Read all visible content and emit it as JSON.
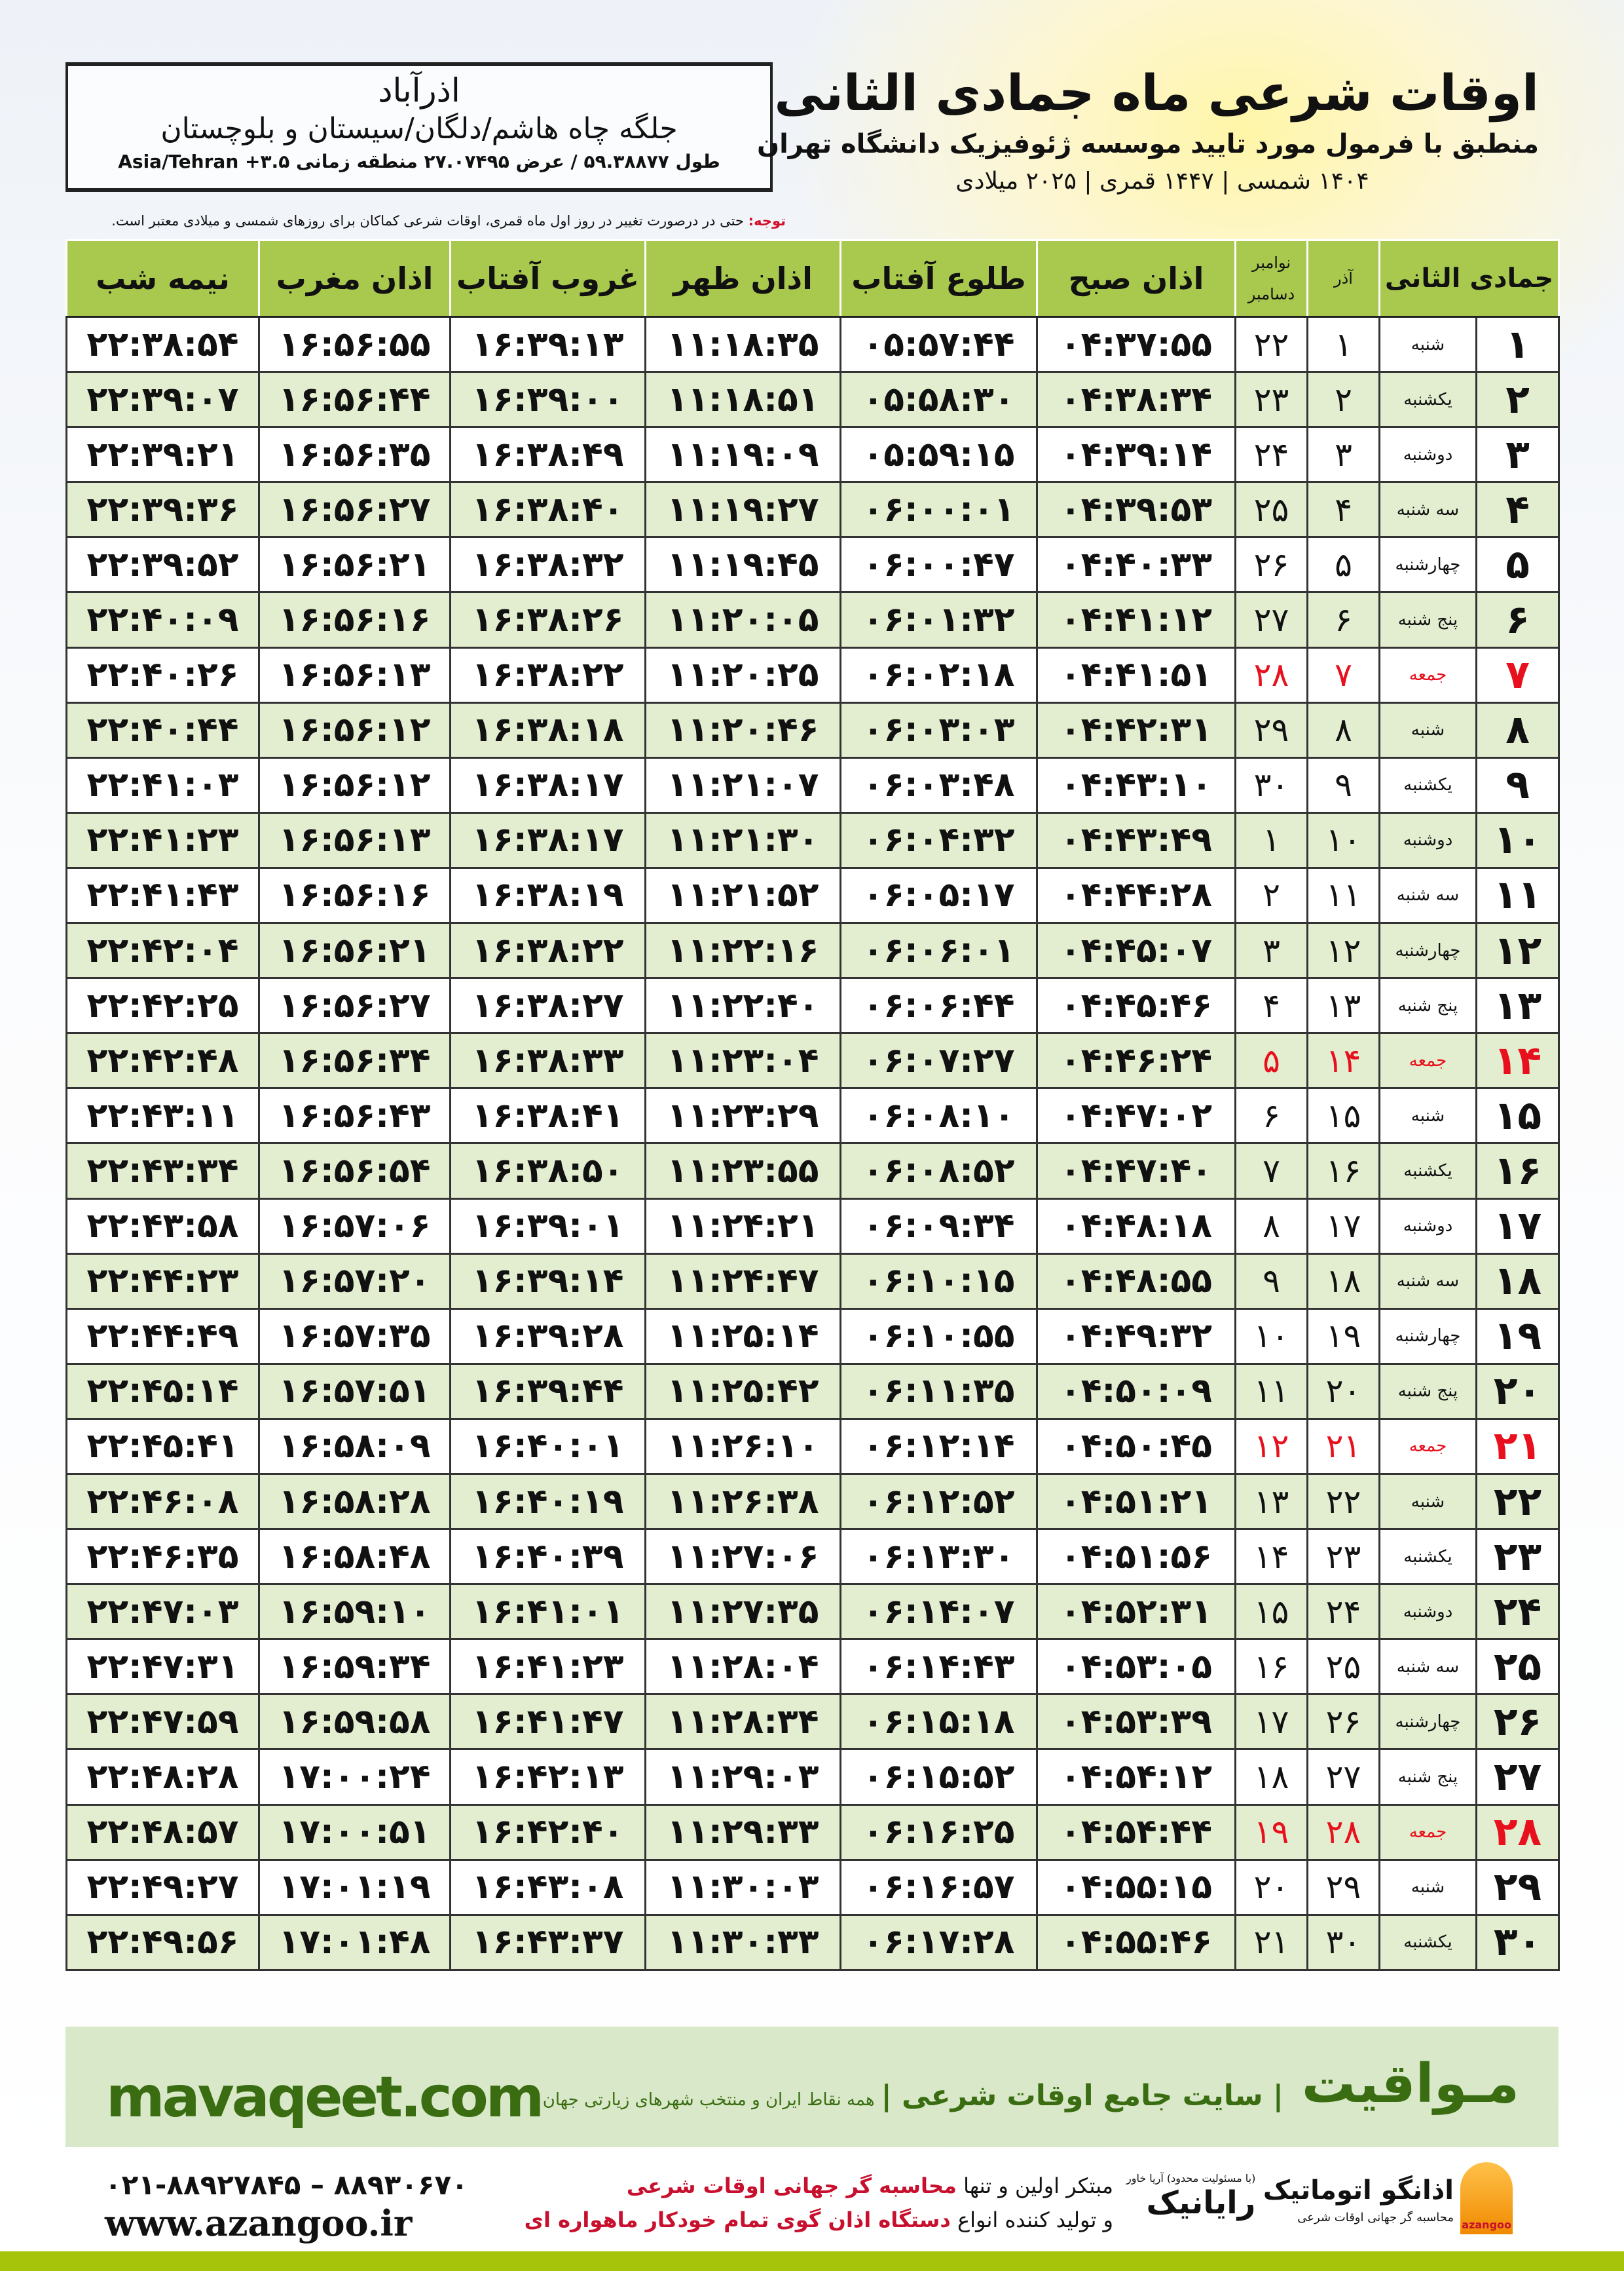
{
  "location": {
    "city": "اذرآباد",
    "region": "جلگه چاه هاشم/دلگان/سیستان و بلوچستان",
    "coords": "طول ۵۹.۳۸۸۷۷ / عرض ۲۷.۰۷۴۹۵ منطقه زمانی ۳.۵+ Asia/Tehran"
  },
  "header": {
    "title": "اوقات شرعی ماه جمادی الثانی",
    "subtitle": "منطبق با فرمول مورد تایید موسسه ژئوفیزیک دانشگاه تهران",
    "date_line": "۱۴۰۴ شمسی | ۱۴۴۷ قمری | ۲۰۲۵ میلادی"
  },
  "note": {
    "label": "توجه:",
    "text": " حتی در درصورت تغییر در روز اول ماه قمری، اوقات شرعی کماکان برای روزهای شمسی و میلادی معتبر است."
  },
  "table": {
    "headers": {
      "month": "جمادی الثانی",
      "shamsi": "آذر",
      "greg_top": "نوامبر",
      "greg_bottom": "دسامبر",
      "fajr": "اذان صبح",
      "sunrise": "طلوع آفتاب",
      "zuhr": "اذان ظهر",
      "sunset": "غروب آفتاب",
      "maghrib": "اذان مغرب",
      "midnight": "نیمه شب"
    },
    "rows": [
      {
        "d": "۱",
        "wd": "شنبه",
        "sh": "۱",
        "g": "۲۲",
        "fri": false,
        "t": [
          "۰۴:۳۷:۵۵",
          "۰۵:۵۷:۴۴",
          "۱۱:۱۸:۳۵",
          "۱۶:۳۹:۱۳",
          "۱۶:۵۶:۵۵",
          "۲۲:۳۸:۵۴"
        ]
      },
      {
        "d": "۲",
        "wd": "یکشنبه",
        "sh": "۲",
        "g": "۲۳",
        "fri": false,
        "t": [
          "۰۴:۳۸:۳۴",
          "۰۵:۵۸:۳۰",
          "۱۱:۱۸:۵۱",
          "۱۶:۳۹:۰۰",
          "۱۶:۵۶:۴۴",
          "۲۲:۳۹:۰۷"
        ]
      },
      {
        "d": "۳",
        "wd": "دوشنبه",
        "sh": "۳",
        "g": "۲۴",
        "fri": false,
        "t": [
          "۰۴:۳۹:۱۴",
          "۰۵:۵۹:۱۵",
          "۱۱:۱۹:۰۹",
          "۱۶:۳۸:۴۹",
          "۱۶:۵۶:۳۵",
          "۲۲:۳۹:۲۱"
        ]
      },
      {
        "d": "۴",
        "wd": "سه شنبه",
        "sh": "۴",
        "g": "۲۵",
        "fri": false,
        "t": [
          "۰۴:۳۹:۵۳",
          "۰۶:۰۰:۰۱",
          "۱۱:۱۹:۲۷",
          "۱۶:۳۸:۴۰",
          "۱۶:۵۶:۲۷",
          "۲۲:۳۹:۳۶"
        ]
      },
      {
        "d": "۵",
        "wd": "چهارشنبه",
        "sh": "۵",
        "g": "۲۶",
        "fri": false,
        "t": [
          "۰۴:۴۰:۳۳",
          "۰۶:۰۰:۴۷",
          "۱۱:۱۹:۴۵",
          "۱۶:۳۸:۳۲",
          "۱۶:۵۶:۲۱",
          "۲۲:۳۹:۵۲"
        ]
      },
      {
        "d": "۶",
        "wd": "پنج شنبه",
        "sh": "۶",
        "g": "۲۷",
        "fri": false,
        "t": [
          "۰۴:۴۱:۱۲",
          "۰۶:۰۱:۳۲",
          "۱۱:۲۰:۰۵",
          "۱۶:۳۸:۲۶",
          "۱۶:۵۶:۱۶",
          "۲۲:۴۰:۰۹"
        ]
      },
      {
        "d": "۷",
        "wd": "جمعه",
        "sh": "۷",
        "g": "۲۸",
        "fri": true,
        "t": [
          "۰۴:۴۱:۵۱",
          "۰۶:۰۲:۱۸",
          "۱۱:۲۰:۲۵",
          "۱۶:۳۸:۲۲",
          "۱۶:۵۶:۱۳",
          "۲۲:۴۰:۲۶"
        ]
      },
      {
        "d": "۸",
        "wd": "شنبه",
        "sh": "۸",
        "g": "۲۹",
        "fri": false,
        "t": [
          "۰۴:۴۲:۳۱",
          "۰۶:۰۳:۰۳",
          "۱۱:۲۰:۴۶",
          "۱۶:۳۸:۱۸",
          "۱۶:۵۶:۱۲",
          "۲۲:۴۰:۴۴"
        ]
      },
      {
        "d": "۹",
        "wd": "یکشنبه",
        "sh": "۹",
        "g": "۳۰",
        "fri": false,
        "t": [
          "۰۴:۴۳:۱۰",
          "۰۶:۰۳:۴۸",
          "۱۱:۲۱:۰۷",
          "۱۶:۳۸:۱۷",
          "۱۶:۵۶:۱۲",
          "۲۲:۴۱:۰۳"
        ]
      },
      {
        "d": "۱۰",
        "wd": "دوشنبه",
        "sh": "۱۰",
        "g": "۱",
        "fri": false,
        "t": [
          "۰۴:۴۳:۴۹",
          "۰۶:۰۴:۳۲",
          "۱۱:۲۱:۳۰",
          "۱۶:۳۸:۱۷",
          "۱۶:۵۶:۱۳",
          "۲۲:۴۱:۲۳"
        ]
      },
      {
        "d": "۱۱",
        "wd": "سه شنبه",
        "sh": "۱۱",
        "g": "۲",
        "fri": false,
        "t": [
          "۰۴:۴۴:۲۸",
          "۰۶:۰۵:۱۷",
          "۱۱:۲۱:۵۲",
          "۱۶:۳۸:۱۹",
          "۱۶:۵۶:۱۶",
          "۲۲:۴۱:۴۳"
        ]
      },
      {
        "d": "۱۲",
        "wd": "چهارشنبه",
        "sh": "۱۲",
        "g": "۳",
        "fri": false,
        "t": [
          "۰۴:۴۵:۰۷",
          "۰۶:۰۶:۰۱",
          "۱۱:۲۲:۱۶",
          "۱۶:۳۸:۲۲",
          "۱۶:۵۶:۲۱",
          "۲۲:۴۲:۰۴"
        ]
      },
      {
        "d": "۱۳",
        "wd": "پنج شنبه",
        "sh": "۱۳",
        "g": "۴",
        "fri": false,
        "t": [
          "۰۴:۴۵:۴۶",
          "۰۶:۰۶:۴۴",
          "۱۱:۲۲:۴۰",
          "۱۶:۳۸:۲۷",
          "۱۶:۵۶:۲۷",
          "۲۲:۴۲:۲۵"
        ]
      },
      {
        "d": "۱۴",
        "wd": "جمعه",
        "sh": "۱۴",
        "g": "۵",
        "fri": true,
        "t": [
          "۰۴:۴۶:۲۴",
          "۰۶:۰۷:۲۷",
          "۱۱:۲۳:۰۴",
          "۱۶:۳۸:۳۳",
          "۱۶:۵۶:۳۴",
          "۲۲:۴۲:۴۸"
        ]
      },
      {
        "d": "۱۵",
        "wd": "شنبه",
        "sh": "۱۵",
        "g": "۶",
        "fri": false,
        "t": [
          "۰۴:۴۷:۰۲",
          "۰۶:۰۸:۱۰",
          "۱۱:۲۳:۲۹",
          "۱۶:۳۸:۴۱",
          "۱۶:۵۶:۴۳",
          "۲۲:۴۳:۱۱"
        ]
      },
      {
        "d": "۱۶",
        "wd": "یکشنبه",
        "sh": "۱۶",
        "g": "۷",
        "fri": false,
        "t": [
          "۰۴:۴۷:۴۰",
          "۰۶:۰۸:۵۲",
          "۱۱:۲۳:۵۵",
          "۱۶:۳۸:۵۰",
          "۱۶:۵۶:۵۴",
          "۲۲:۴۳:۳۴"
        ]
      },
      {
        "d": "۱۷",
        "wd": "دوشنبه",
        "sh": "۱۷",
        "g": "۸",
        "fri": false,
        "t": [
          "۰۴:۴۸:۱۸",
          "۰۶:۰۹:۳۴",
          "۱۱:۲۴:۲۱",
          "۱۶:۳۹:۰۱",
          "۱۶:۵۷:۰۶",
          "۲۲:۴۳:۵۸"
        ]
      },
      {
        "d": "۱۸",
        "wd": "سه شنبه",
        "sh": "۱۸",
        "g": "۹",
        "fri": false,
        "t": [
          "۰۴:۴۸:۵۵",
          "۰۶:۱۰:۱۵",
          "۱۱:۲۴:۴۷",
          "۱۶:۳۹:۱۴",
          "۱۶:۵۷:۲۰",
          "۲۲:۴۴:۲۳"
        ]
      },
      {
        "d": "۱۹",
        "wd": "چهارشنبه",
        "sh": "۱۹",
        "g": "۱۰",
        "fri": false,
        "t": [
          "۰۴:۴۹:۳۲",
          "۰۶:۱۰:۵۵",
          "۱۱:۲۵:۱۴",
          "۱۶:۳۹:۲۸",
          "۱۶:۵۷:۳۵",
          "۲۲:۴۴:۴۹"
        ]
      },
      {
        "d": "۲۰",
        "wd": "پنج شنبه",
        "sh": "۲۰",
        "g": "۱۱",
        "fri": false,
        "t": [
          "۰۴:۵۰:۰۹",
          "۰۶:۱۱:۳۵",
          "۱۱:۲۵:۴۲",
          "۱۶:۳۹:۴۴",
          "۱۶:۵۷:۵۱",
          "۲۲:۴۵:۱۴"
        ]
      },
      {
        "d": "۲۱",
        "wd": "جمعه",
        "sh": "۲۱",
        "g": "۱۲",
        "fri": true,
        "t": [
          "۰۴:۵۰:۴۵",
          "۰۶:۱۲:۱۴",
          "۱۱:۲۶:۱۰",
          "۱۶:۴۰:۰۱",
          "۱۶:۵۸:۰۹",
          "۲۲:۴۵:۴۱"
        ]
      },
      {
        "d": "۲۲",
        "wd": "شنبه",
        "sh": "۲۲",
        "g": "۱۳",
        "fri": false,
        "t": [
          "۰۴:۵۱:۲۱",
          "۰۶:۱۲:۵۲",
          "۱۱:۲۶:۳۸",
          "۱۶:۴۰:۱۹",
          "۱۶:۵۸:۲۸",
          "۲۲:۴۶:۰۸"
        ]
      },
      {
        "d": "۲۳",
        "wd": "یکشنبه",
        "sh": "۲۳",
        "g": "۱۴",
        "fri": false,
        "t": [
          "۰۴:۵۱:۵۶",
          "۰۶:۱۳:۳۰",
          "۱۱:۲۷:۰۶",
          "۱۶:۴۰:۳۹",
          "۱۶:۵۸:۴۸",
          "۲۲:۴۶:۳۵"
        ]
      },
      {
        "d": "۲۴",
        "wd": "دوشنبه",
        "sh": "۲۴",
        "g": "۱۵",
        "fri": false,
        "t": [
          "۰۴:۵۲:۳۱",
          "۰۶:۱۴:۰۷",
          "۱۱:۲۷:۳۵",
          "۱۶:۴۱:۰۱",
          "۱۶:۵۹:۱۰",
          "۲۲:۴۷:۰۳"
        ]
      },
      {
        "d": "۲۵",
        "wd": "سه شنبه",
        "sh": "۲۵",
        "g": "۱۶",
        "fri": false,
        "t": [
          "۰۴:۵۳:۰۵",
          "۰۶:۱۴:۴۳",
          "۱۱:۲۸:۰۴",
          "۱۶:۴۱:۲۳",
          "۱۶:۵۹:۳۴",
          "۲۲:۴۷:۳۱"
        ]
      },
      {
        "d": "۲۶",
        "wd": "چهارشنبه",
        "sh": "۲۶",
        "g": "۱۷",
        "fri": false,
        "t": [
          "۰۴:۵۳:۳۹",
          "۰۶:۱۵:۱۸",
          "۱۱:۲۸:۳۴",
          "۱۶:۴۱:۴۷",
          "۱۶:۵۹:۵۸",
          "۲۲:۴۷:۵۹"
        ]
      },
      {
        "d": "۲۷",
        "wd": "پنج شنبه",
        "sh": "۲۷",
        "g": "۱۸",
        "fri": false,
        "t": [
          "۰۴:۵۴:۱۲",
          "۰۶:۱۵:۵۲",
          "۱۱:۲۹:۰۳",
          "۱۶:۴۲:۱۳",
          "۱۷:۰۰:۲۴",
          "۲۲:۴۸:۲۸"
        ]
      },
      {
        "d": "۲۸",
        "wd": "جمعه",
        "sh": "۲۸",
        "g": "۱۹",
        "fri": true,
        "t": [
          "۰۴:۵۴:۴۴",
          "۰۶:۱۶:۲۵",
          "۱۱:۲۹:۳۳",
          "۱۶:۴۲:۴۰",
          "۱۷:۰۰:۵۱",
          "۲۲:۴۸:۵۷"
        ]
      },
      {
        "d": "۲۹",
        "wd": "شنبه",
        "sh": "۲۹",
        "g": "۲۰",
        "fri": false,
        "t": [
          "۰۴:۵۵:۱۵",
          "۰۶:۱۶:۵۷",
          "۱۱:۳۰:۰۳",
          "۱۶:۴۳:۰۸",
          "۱۷:۰۱:۱۹",
          "۲۲:۴۹:۲۷"
        ]
      },
      {
        "d": "۳۰",
        "wd": "یکشنبه",
        "sh": "۳۰",
        "g": "۲۱",
        "fri": false,
        "t": [
          "۰۴:۵۵:۴۶",
          "۰۶:۱۷:۲۸",
          "۱۱:۳۰:۳۳",
          "۱۶:۴۳:۳۷",
          "۱۷:۰۱:۴۸",
          "۲۲:۴۹:۵۶"
        ]
      }
    ]
  },
  "footer": {
    "site": "mavaqeet.com",
    "brand": "مـواقیت",
    "slogan": "| سایت جامع اوقات شرعی |",
    "slogan_small": "همه نقاط ایران و منتخب شهرهای زیارتی جهان",
    "phone": "۰۲۱-۸۸۹۲۷۸۴۵ – ۸۸۹۳۰۶۷۰",
    "web": "www.azangoo.ir",
    "blurb1_a": "مبتکر اولین و تنها ",
    "blurb1_b": "محاسبه گر جهانی اوقات شرعی",
    "blurb2_a": "و تولید کننده انواع ",
    "blurb2_b": "دستگاه اذان گوی تمام خودکار ماهواره ای",
    "logo_rayanik": "رایانیک",
    "logo_rayanik_small": "(با مسئولیت محدود) آریا خاور",
    "logo_azangoo": "اذانگو اتوماتیک",
    "logo_azangoo_small": "محاسبه گر جهانی اوقات شرعی",
    "logo_azangoo_en": "azangoo"
  },
  "colors": {
    "header_green": "#a9c94e",
    "row_green": "#e3eed0",
    "friday_red": "#e8101c",
    "brand_green": "#3a6d12",
    "bar_green": "#a6c40a"
  }
}
